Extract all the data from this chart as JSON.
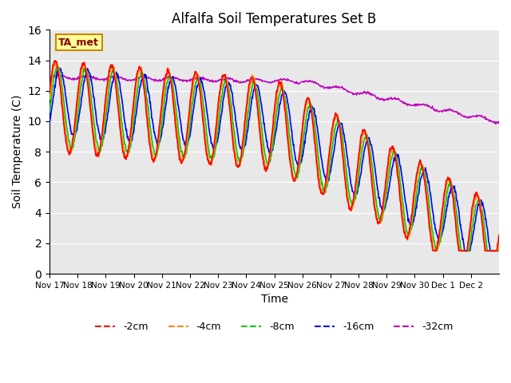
{
  "title": "Alfalfa Soil Temperatures Set B",
  "xlabel": "Time",
  "ylabel": "Soil Temperature (C)",
  "ylim": [
    0,
    16
  ],
  "yticks": [
    0,
    2,
    4,
    6,
    8,
    10,
    12,
    14,
    16
  ],
  "background_color": "#e8e8e8",
  "annotation_text": "TA_met",
  "annotation_bg": "#ffff99",
  "annotation_border": "#cc8800",
  "series_colors": {
    "-2cm": "#ff0000",
    "-4cm": "#ff8800",
    "-8cm": "#00cc00",
    "-16cm": "#0000ff",
    "-32cm": "#bb00bb"
  },
  "x_tick_labels": [
    "Nov 17",
    "Nov 18",
    "Nov 19",
    "Nov 20",
    "Nov 21",
    "Nov 22",
    "Nov 23",
    "Nov 24",
    "Nov 25",
    "Nov 26",
    "Nov 27",
    "Nov 28",
    "Nov 29",
    "Nov 30",
    "Dec 1",
    "Dec 2"
  ],
  "n_points": 960,
  "days": 16
}
